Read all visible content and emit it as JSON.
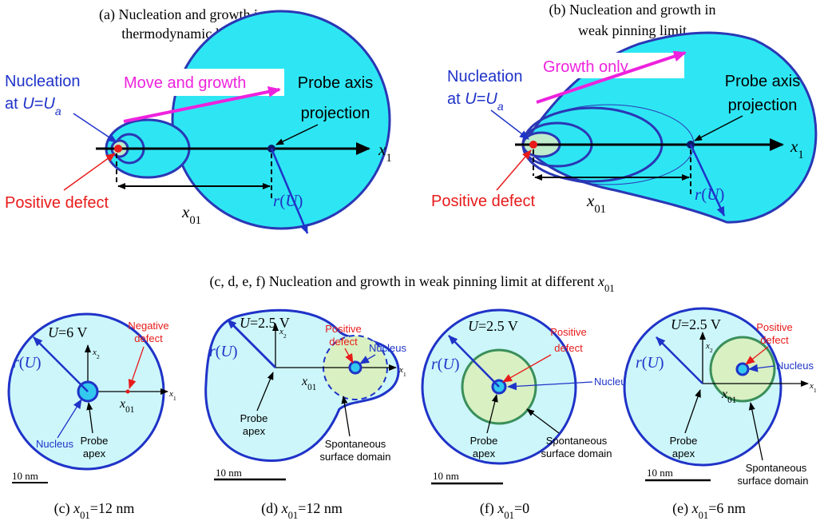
{
  "panel_a": {
    "title": [
      "(a) Nucleation and growth in",
      "thermodynamic limit"
    ],
    "nucleation": [
      "Nucleation",
      "at ",
      "U",
      "=",
      "U",
      "a"
    ],
    "motion": "Move and growth",
    "probe": [
      "Probe axis",
      "projection"
    ],
    "axis": [
      "x",
      "1"
    ],
    "radius": [
      "r",
      "(",
      "U",
      ")"
    ],
    "defect": "Positive defect",
    "offset": [
      "x",
      "01"
    ]
  },
  "panel_b": {
    "title": [
      "(b) Nucleation and growth in",
      "weak pinning limit"
    ],
    "nucleation": [
      "Nucleation",
      "at ",
      "U",
      "=",
      "U",
      "a"
    ],
    "motion": "Growth only",
    "probe": [
      "Probe axis",
      "projection"
    ],
    "axis": [
      "x",
      "1"
    ],
    "radius": [
      "r",
      "(",
      "U",
      ")"
    ],
    "defect": "Positive defect",
    "offset": [
      "x",
      "01"
    ]
  },
  "middle": {
    "caption": [
      "(c, d, e, f) Nucleation and growth in weak pinning limit at different ",
      "x",
      "01"
    ]
  },
  "panel_c": {
    "voltage": [
      "U",
      "=6 V"
    ],
    "defect": [
      "Negative",
      "defect"
    ],
    "x2": [
      "x",
      "2"
    ],
    "x1": [
      "x",
      "1"
    ],
    "radius": [
      "r",
      "(",
      "U",
      ")"
    ],
    "offset": [
      "x",
      "01"
    ],
    "nucleus": "Nucleus",
    "apex": [
      "Probe",
      "apex"
    ],
    "scale": "10 nm",
    "caption": [
      "(c)  ",
      "x",
      "01",
      "=12 nm"
    ]
  },
  "panel_d": {
    "voltage": [
      "U",
      "=2.5 V"
    ],
    "defect": [
      "Positive",
      "defect"
    ],
    "nucleus": "Nucleus",
    "x2": [
      "x",
      "2"
    ],
    "x1": [
      "x",
      "1"
    ],
    "radius": [
      "r",
      "(",
      "U",
      ")"
    ],
    "offset": [
      "x",
      "01"
    ],
    "apex": [
      "Probe",
      "apex"
    ],
    "domain": [
      "Spontaneous",
      "surface domain"
    ],
    "scale": "10 nm",
    "caption": [
      "(d)  ",
      "x",
      "01",
      "=12 nm"
    ]
  },
  "panel_f": {
    "voltage": [
      "U",
      "=2.5 V"
    ],
    "defect": [
      "Positive",
      "defect"
    ],
    "radius": [
      "r",
      "(",
      "U",
      ")"
    ],
    "nucleus": "Nucleus",
    "apex": [
      "Probe",
      "apex"
    ],
    "domain": [
      "Spontaneous",
      "surface domain"
    ],
    "scale": "10 nm",
    "caption": [
      "(f)  ",
      "x",
      "01",
      "=0"
    ]
  },
  "panel_e": {
    "voltage": [
      "U",
      "=2.5 V"
    ],
    "defect": [
      "Positive",
      "defect"
    ],
    "x2": [
      "x",
      "2"
    ],
    "x1": [
      "x",
      "1"
    ],
    "nucleus": "Nucleus",
    "radius": [
      "r",
      "(",
      "U",
      ")"
    ],
    "offset": [
      "x",
      "01"
    ],
    "apex": [
      "Probe",
      "apex"
    ],
    "domain": [
      "Spontaneous",
      "surface domain"
    ],
    "scale": "10 nm",
    "caption": [
      "(e)  ",
      "x",
      "01",
      "=6 nm"
    ]
  }
}
